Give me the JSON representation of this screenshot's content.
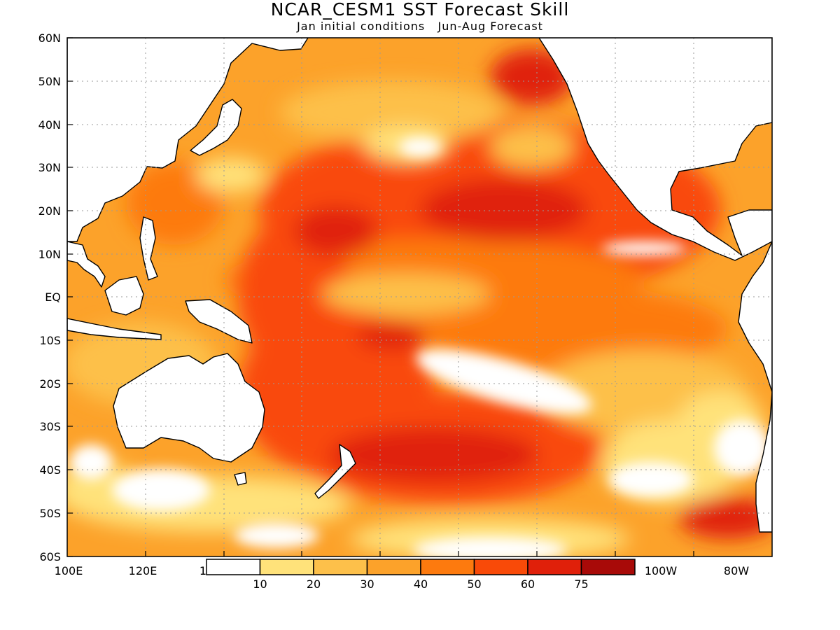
{
  "title": "NCAR_CESM1  SST Forecast Skill",
  "subtitle": "Jan initial conditions   Jun-Aug Forecast",
  "map": {
    "projection": "equirectangular",
    "lon_range": [
      "100E",
      "80W"
    ],
    "lat_range": [
      "60S",
      "60N"
    ],
    "variable": "SST forecast skill",
    "land_color": "#ffffff",
    "coastline_color": "#000000",
    "gridlines": "dotted",
    "lat_labels": [
      "60N",
      "50N",
      "40N",
      "30N",
      "20N",
      "10N",
      "EQ",
      "10S",
      "20S",
      "30S",
      "40S",
      "50S",
      "60S"
    ],
    "lon_labels": [
      "100E",
      "120E",
      "1",
      "100W",
      "80W"
    ]
  },
  "colorbar": {
    "labels": [
      "10",
      "20",
      "30",
      "40",
      "50",
      "60",
      "75"
    ],
    "colors": [
      "#ffffff",
      "#ffe27a",
      "#fdc04a",
      "#fca22a",
      "#fd7a0e",
      "#f94a08",
      "#e0200a",
      "#a80a08"
    ]
  }
}
